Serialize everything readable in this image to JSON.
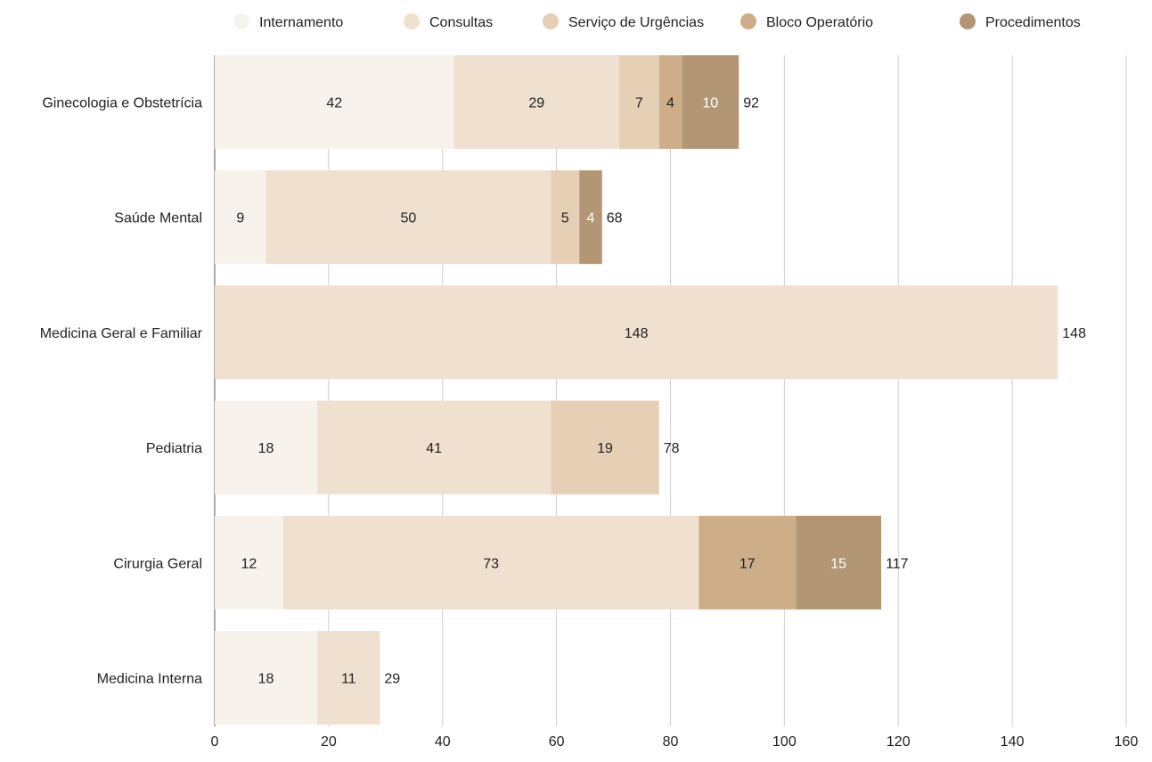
{
  "chart_data": {
    "type": "bar",
    "orientation": "horizontal",
    "stacked": true,
    "categories": [
      "Ginecologia e Obstetrícia",
      "Saúde Mental",
      "Medicina Geral e Familiar",
      "Pediatria",
      "Cirurgia Geral",
      "Medicina Interna"
    ],
    "series": [
      {
        "name": "Internamento",
        "color": "#f7f3ec",
        "values": [
          42,
          9,
          0,
          18,
          12,
          18
        ]
      },
      {
        "name": "Consultas",
        "color": "#efe0d0",
        "values": [
          29,
          50,
          148,
          41,
          73,
          11
        ]
      },
      {
        "name": "Serviço de Urgências",
        "color": "#e6d0b5",
        "values": [
          7,
          5,
          0,
          19,
          0,
          0
        ]
      },
      {
        "name": "Bloco Operatório",
        "color": "#cdae89",
        "values": [
          4,
          0,
          0,
          0,
          17,
          0
        ]
      },
      {
        "name": "Procedimentos",
        "color": "#b39673",
        "values": [
          10,
          4,
          0,
          0,
          15,
          0
        ]
      }
    ],
    "totals": [
      92,
      68,
      148,
      78,
      117,
      29
    ],
    "xlim": [
      0,
      160
    ],
    "xticks": [
      0,
      20,
      40,
      60,
      80,
      100,
      120,
      140,
      160
    ],
    "grid": "vertical",
    "legend": "top",
    "title": "",
    "xlabel": "",
    "ylabel": ""
  }
}
